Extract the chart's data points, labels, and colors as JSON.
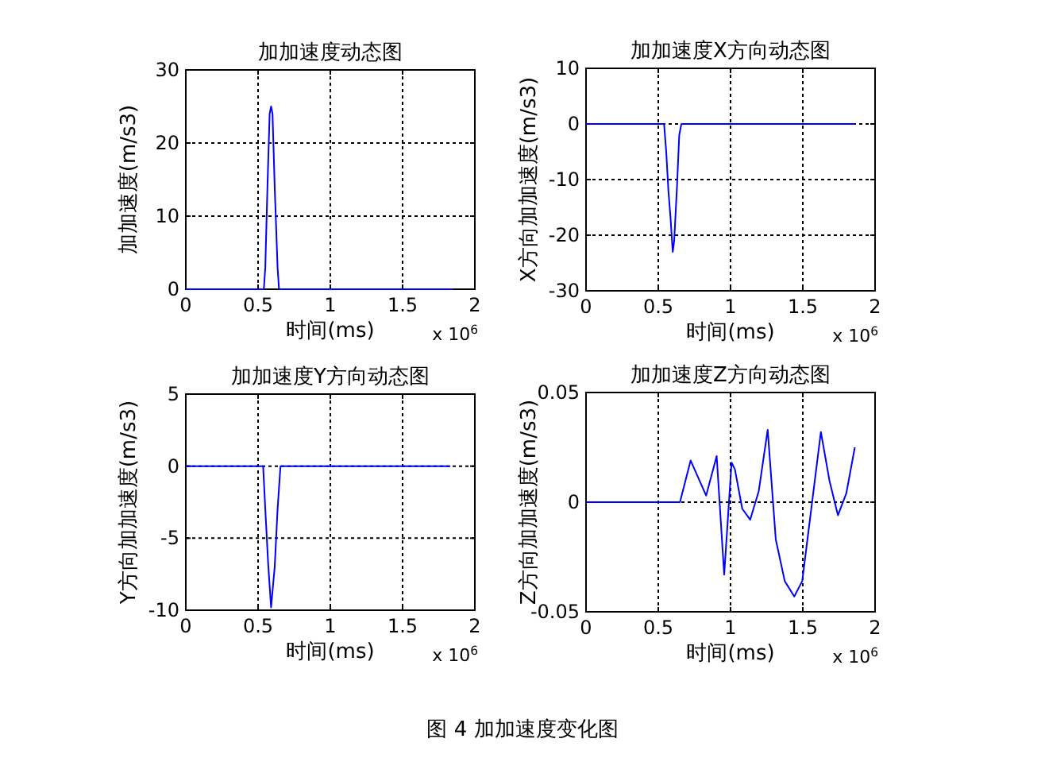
{
  "chart_data": [
    {
      "type": "line",
      "title": "加加速度动态图",
      "xlabel": "时间(ms)",
      "ylabel": "加加速度(m/s3)",
      "color": "#0000ff",
      "grid": true,
      "xlim": [
        0,
        2
      ],
      "xticks": [
        0,
        0.5,
        1,
        1.5,
        2
      ],
      "ylim": [
        0,
        30
      ],
      "yticks": [
        0,
        10,
        20,
        30
      ],
      "annotations": [
        "x 10$^{6}$"
      ],
      "x": [
        0,
        0.54,
        0.55,
        0.565,
        0.58,
        0.59,
        0.6,
        0.615,
        0.635,
        0.645,
        1.85
      ],
      "values": [
        0,
        0,
        3,
        14,
        24,
        25,
        24,
        14,
        3,
        0,
        0
      ]
    },
    {
      "type": "line",
      "title": "加加速度X方向动态图",
      "xlabel": "时间(ms)",
      "ylabel": "X方向加加速度(m/s3)",
      "color": "#0000ff",
      "grid": true,
      "xlim": [
        0,
        2
      ],
      "xticks": [
        0,
        0.5,
        1,
        1.5,
        2
      ],
      "ylim": [
        -30,
        10
      ],
      "yticks": [
        -30,
        -20,
        -10,
        0,
        10
      ],
      "annotations": [
        "x 10$^{6}$"
      ],
      "x": [
        0,
        0.54,
        0.555,
        0.57,
        0.585,
        0.595,
        0.6,
        0.61,
        0.62,
        0.63,
        0.645,
        0.66,
        1.86
      ],
      "values": [
        0,
        0,
        -5,
        -12,
        -17,
        -21,
        -23,
        -21,
        -16,
        -11,
        -2,
        0,
        0
      ]
    },
    {
      "type": "line",
      "title": "加加速度Y方向动态图",
      "xlabel": "时间(ms)",
      "ylabel": "Y方向加加速度(m/s3)",
      "color": "#0000ff",
      "grid": true,
      "xlim": [
        0,
        2
      ],
      "xticks": [
        0,
        0.5,
        1,
        1.5,
        2
      ],
      "ylim": [
        -10,
        5
      ],
      "yticks": [
        -10,
        -5,
        0,
        5
      ],
      "annotations": [
        "x 10$^{6}$"
      ],
      "x": [
        0,
        0.535,
        0.55,
        0.57,
        0.59,
        0.615,
        0.635,
        0.655,
        1.83
      ],
      "values": [
        0,
        0,
        -3,
        -6.8,
        -9.8,
        -7,
        -3,
        0,
        0
      ]
    },
    {
      "type": "line",
      "title": "加加速度Z方向动态图",
      "xlabel": "时间(ms)",
      "ylabel": "Z方向加加速度(m/s3)",
      "color": "#0000ff",
      "grid": true,
      "xlim": [
        0,
        2
      ],
      "xticks": [
        0,
        0.5,
        1,
        1.5,
        2
      ],
      "ylim": [
        -0.05,
        0.05
      ],
      "yticks": [
        -0.05,
        0,
        0.05
      ],
      "annotations": [
        "x 10$^{6}$",
        "图 4  加加速度变化图"
      ],
      "x": [
        0,
        0.65,
        0.724,
        0.831,
        0.904,
        0.956,
        1.007,
        1.03,
        1.081,
        1.136,
        1.195,
        1.257,
        1.313,
        1.375,
        1.441,
        1.496,
        1.625,
        1.684,
        1.743,
        1.801,
        1.86
      ],
      "values": [
        0,
        0,
        0.019,
        0.003,
        0.021,
        -0.033,
        0.018,
        0.015,
        -0.003,
        -0.008,
        0.005,
        0.033,
        -0.017,
        -0.036,
        -0.043,
        -0.036,
        0.032,
        0.01,
        -0.006,
        0.004,
        0.025
      ]
    }
  ]
}
